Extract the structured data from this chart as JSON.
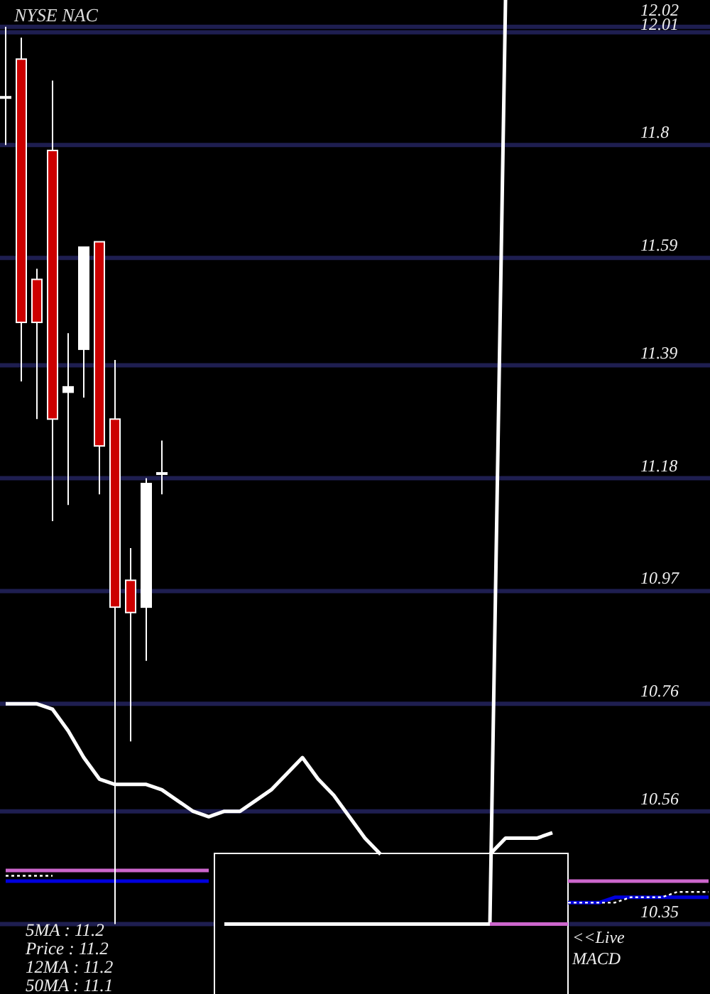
{
  "chart_data": {
    "type": "candlestick",
    "title": "NYSE NAC",
    "categories": [
      null,
      null,
      null,
      null,
      null,
      null,
      null,
      null,
      null,
      null,
      null,
      null,
      null,
      null,
      null,
      null,
      null,
      null,
      null,
      null,
      null,
      null,
      null,
      null,
      null,
      null,
      null,
      null,
      null,
      null,
      null,
      null,
      null,
      null,
      null,
      null,
      null,
      null,
      null,
      null,
      null,
      null,
      null,
      null,
      null,
      null
    ],
    "ohlc": [
      [
        11.89,
        12.02,
        11.8,
        11.89
      ],
      [
        11.96,
        12.0,
        11.36,
        11.47
      ],
      [
        11.55,
        11.57,
        11.29,
        11.47
      ],
      [
        11.79,
        11.92,
        11.1,
        11.29
      ],
      [
        11.34,
        11.45,
        11.13,
        11.35
      ],
      [
        11.42,
        11.61,
        11.33,
        11.61
      ],
      [
        11.62,
        11.62,
        11.15,
        11.24
      ],
      [
        11.29,
        11.4,
        10.35,
        10.94
      ],
      [
        10.99,
        11.05,
        10.69,
        10.93
      ],
      [
        10.94,
        11.18,
        10.84,
        11.17
      ],
      [
        11.19,
        11.25,
        11.15,
        11.19
      ],
      null,
      null,
      null,
      null,
      null,
      null,
      null,
      null,
      null,
      null,
      null,
      null,
      null,
      null,
      null,
      null,
      null,
      null,
      null,
      null,
      null,
      null,
      null,
      null,
      null,
      null,
      null,
      null,
      null,
      null,
      null,
      null,
      null,
      null,
      null
    ],
    "colors": [
      "#ffffff",
      "#cc0000",
      "#cc0000",
      "#cc0000",
      "#ffffff",
      "#ffffff",
      "#cc0000",
      "#cc0000",
      "#cc0000",
      "#ffffff",
      "#ffffff",
      null,
      null,
      null,
      null,
      null,
      null,
      null,
      null,
      null,
      null,
      null,
      null,
      null,
      null,
      null,
      null,
      null,
      null,
      null,
      null,
      null,
      null,
      null,
      null,
      null,
      null,
      null,
      null,
      null,
      null,
      null,
      null,
      null,
      null,
      null
    ],
    "series": [
      {
        "type": "line",
        "color": "#ffffff",
        "values": [
          10.76,
          10.76,
          10.76,
          10.75,
          10.71,
          10.66,
          10.62,
          10.61,
          10.61,
          10.61,
          10.6,
          10.58,
          10.56,
          10.55,
          10.56,
          10.56,
          10.58,
          10.6,
          10.63,
          10.66,
          10.62,
          10.59,
          10.55,
          10.51,
          10.48,
          null,
          null,
          null,
          null,
          null,
          null,
          10.48,
          10.51,
          10.51,
          10.51,
          10.52,
          null,
          null,
          null,
          null,
          null,
          null,
          null,
          null,
          null,
          null
        ]
      },
      {
        "type": "line",
        "color": "#cc66cc",
        "values": [
          10.45,
          10.45,
          10.45,
          10.45,
          10.45,
          10.45,
          10.45,
          10.45,
          10.45,
          10.45,
          10.45,
          10.45,
          10.45,
          10.45,
          null,
          null,
          null,
          null,
          null,
          null,
          null,
          null,
          null,
          null,
          null,
          null,
          null,
          null,
          null,
          null,
          null,
          null,
          null,
          null,
          null,
          null,
          10.43,
          10.43,
          10.43,
          10.43,
          10.43,
          10.43,
          10.43,
          10.43,
          10.43,
          10.43
        ]
      },
      {
        "type": "line",
        "color": "#0000dd",
        "values": [
          10.43,
          10.43,
          10.43,
          10.43,
          10.43,
          10.43,
          10.43,
          10.43,
          10.43,
          10.43,
          10.43,
          10.43,
          10.43,
          10.43,
          null,
          null,
          null,
          null,
          null,
          null,
          null,
          null,
          null,
          null,
          null,
          null,
          null,
          null,
          null,
          null,
          null,
          null,
          null,
          null,
          null,
          null,
          10.39,
          10.39,
          10.39,
          10.4,
          10.4,
          10.4,
          10.4,
          10.4,
          10.4,
          10.4
        ]
      },
      {
        "type": "line",
        "color": "#ffffff",
        "line_style": "dotted",
        "values": [
          10.44,
          10.44,
          10.44,
          10.44,
          null,
          null,
          null,
          null,
          null,
          null,
          null,
          null,
          null,
          null,
          null,
          null,
          null,
          null,
          null,
          null,
          null,
          null,
          null,
          null,
          null,
          null,
          null,
          null,
          null,
          null,
          null,
          null,
          null,
          null,
          null,
          null,
          10.39,
          10.39,
          10.39,
          10.39,
          10.4,
          10.4,
          10.4,
          10.41,
          10.41,
          10.41
        ]
      },
      {
        "type": "line",
        "color": "#ffffff",
        "values": [
          null,
          null,
          null,
          null,
          null,
          null,
          null,
          null,
          null,
          null,
          null,
          null,
          null,
          null,
          10.35,
          10.35,
          10.35,
          10.35,
          10.35,
          10.35,
          10.35,
          10.35,
          10.35,
          10.35,
          10.35,
          10.35,
          10.35,
          10.35,
          10.35,
          10.35,
          10.35,
          10.35,
          12.07,
          null,
          null,
          null,
          null,
          null,
          null,
          null,
          null,
          null,
          null,
          null,
          null,
          null
        ]
      },
      {
        "type": "line",
        "color": "#cc66cc",
        "values": [
          null,
          null,
          null,
          null,
          null,
          null,
          null,
          null,
          null,
          null,
          null,
          null,
          null,
          null,
          null,
          null,
          null,
          null,
          null,
          null,
          null,
          null,
          null,
          null,
          null,
          null,
          null,
          null,
          null,
          null,
          null,
          10.35,
          10.35,
          10.35,
          10.35,
          10.35,
          10.35,
          null,
          null,
          null,
          null,
          null,
          null,
          null,
          null,
          null
        ]
      }
    ],
    "ylim": [
      10.22,
      12.07
    ],
    "yticks": [
      12.02,
      12.01,
      11.8,
      11.59,
      11.39,
      11.18,
      10.97,
      10.76,
      10.56,
      10.35
    ],
    "grid": "y",
    "tick_labels": "y",
    "annotations": [
      "5MA : 11.2",
      "Price : 11.2",
      "12MA : 11.2",
      "50MA : 11.1",
      "<<Live MACD"
    ]
  }
}
